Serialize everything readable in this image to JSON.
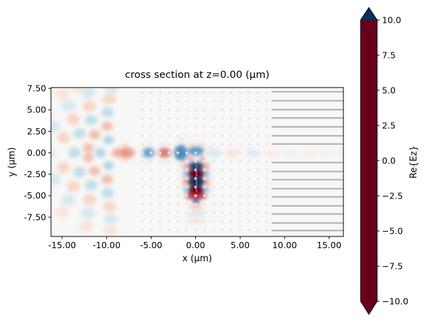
{
  "figure": {
    "title": "cross section at z=0.00 (μm)"
  },
  "chart_data": {
    "type": "heatmap",
    "title": "cross section at z=0.00 (μm)",
    "xlabel": "x (μm)",
    "ylabel": "y (μm)",
    "xlim": [
      -16.25,
      16.6
    ],
    "ylim": [
      -9.75,
      7.6
    ],
    "background": "#f7f7f6",
    "grid": false,
    "x_ticks": [
      {
        "v": -15,
        "label": "-15.00"
      },
      {
        "v": -10,
        "label": "-10.00"
      },
      {
        "v": -5,
        "label": "-5.00"
      },
      {
        "v": 0,
        "label": "0.00"
      },
      {
        "v": 5,
        "label": "5.00"
      },
      {
        "v": 10,
        "label": "10.00"
      },
      {
        "v": 15,
        "label": "15.00"
      }
    ],
    "y_ticks": [
      {
        "v": 7.5,
        "label": "7.50"
      },
      {
        "v": 5.0,
        "label": "5.00"
      },
      {
        "v": 2.5,
        "label": "2.50"
      },
      {
        "v": 0.0,
        "label": "0.00"
      },
      {
        "v": -2.5,
        "label": "-2.50"
      },
      {
        "v": -5.0,
        "label": "-5.00"
      },
      {
        "v": -7.5,
        "label": "-7.50"
      }
    ],
    "colormap_name": "RdBu",
    "colormap_stops": [
      [
        0.0,
        "#67001f"
      ],
      [
        0.1,
        "#b2182b"
      ],
      [
        0.2,
        "#d6604d"
      ],
      [
        0.3,
        "#f4a582"
      ],
      [
        0.4,
        "#fddbc7"
      ],
      [
        0.5,
        "#f7f7f7"
      ],
      [
        0.6,
        "#d1e5f0"
      ],
      [
        0.7,
        "#92c5de"
      ],
      [
        0.8,
        "#4393c3"
      ],
      [
        0.9,
        "#2166ac"
      ],
      [
        1.0,
        "#053061"
      ]
    ],
    "colorbar": {
      "label": "Re{Ez}",
      "vmin": -10,
      "vmax": 10,
      "extend": "both",
      "ticks": [
        {
          "v": 10.0,
          "label": "10.0"
        },
        {
          "v": 7.5,
          "label": "7.5"
        },
        {
          "v": 5.0,
          "label": "5.0"
        },
        {
          "v": 2.5,
          "label": "2.5"
        },
        {
          "v": 0.0,
          "label": "0.0"
        },
        {
          "v": -2.5,
          "label": "−2.5"
        },
        {
          "v": -5.0,
          "label": "−5.0"
        },
        {
          "v": -7.5,
          "label": "−7.5"
        },
        {
          "v": -10.0,
          "label": "−10.0"
        }
      ]
    },
    "field_blobs": [
      [
        -9.8,
        1.5,
        0.6,
        0.5,
        4.5
      ],
      [
        -10.7,
        0,
        0.6,
        0.55,
        4.5
      ],
      [
        -9.8,
        -1.5,
        0.6,
        0.5,
        4.5
      ],
      [
        -9.95,
        3.1,
        0.65,
        0.55,
        -4.5
      ],
      [
        -11.35,
        2.1,
        0.65,
        0.55,
        -4.5
      ],
      [
        -12.05,
        0.57,
        0.6,
        0.55,
        -4.5
      ],
      [
        -12.05,
        -0.57,
        0.6,
        0.55,
        -4.5
      ],
      [
        -11.35,
        -2.1,
        0.65,
        0.55,
        -4.5
      ],
      [
        -9.95,
        -3.1,
        0.65,
        0.55,
        -4.5
      ],
      [
        -9.9,
        4.7,
        0.7,
        0.6,
        4
      ],
      [
        -11.75,
        3.8,
        0.7,
        0.6,
        4
      ],
      [
        -13.05,
        2.25,
        0.7,
        0.6,
        4
      ],
      [
        -13.6,
        0,
        0.7,
        0.6,
        4
      ],
      [
        -13.05,
        -2.25,
        0.7,
        0.6,
        4
      ],
      [
        -11.75,
        -3.8,
        0.7,
        0.6,
        4
      ],
      [
        -9.9,
        -4.7,
        0.7,
        0.6,
        4
      ],
      [
        -9.7,
        6.25,
        0.75,
        0.6,
        -3.5
      ],
      [
        -11.95,
        5.45,
        0.75,
        0.65,
        -3.5
      ],
      [
        -13.75,
        3.9,
        0.75,
        0.65,
        -3.5
      ],
      [
        -14.85,
        1.75,
        0.7,
        0.65,
        -3.5
      ],
      [
        -14.85,
        -1.75,
        0.7,
        0.65,
        -3.5
      ],
      [
        -13.75,
        -3.9,
        0.75,
        0.65,
        -3.5
      ],
      [
        -11.95,
        -5.45,
        0.75,
        0.65,
        -3.5
      ],
      [
        -9.7,
        -6.25,
        0.75,
        0.6,
        -3.5
      ],
      [
        -9.5,
        7.5,
        0.8,
        0.6,
        3
      ],
      [
        -12.1,
        7.05,
        0.8,
        0.7,
        3
      ],
      [
        -14.3,
        5.5,
        0.8,
        0.7,
        3
      ],
      [
        -16.0,
        3.05,
        0.8,
        0.7,
        3
      ],
      [
        -16.55,
        0,
        0.8,
        0.7,
        3
      ],
      [
        -16.0,
        -3.05,
        0.8,
        0.7,
        3
      ],
      [
        -14.3,
        -5.5,
        0.8,
        0.7,
        3
      ],
      [
        -12.1,
        -7.05,
        0.8,
        0.7,
        3
      ],
      [
        -9.5,
        -7.75,
        0.8,
        0.6,
        3
      ],
      [
        -15.0,
        6.9,
        0.8,
        0.7,
        -2.5
      ],
      [
        -16.9,
        3.9,
        0.8,
        0.7,
        -2.5
      ],
      [
        -16.9,
        -3.9,
        0.8,
        0.7,
        -2.5
      ],
      [
        -15.0,
        -6.9,
        0.8,
        0.7,
        -2.5
      ],
      [
        -12.3,
        -8.6,
        0.8,
        0.7,
        -2.5
      ],
      [
        -9.6,
        -9.1,
        0.8,
        0.6,
        -2.5
      ],
      [
        -13.3,
        7.5,
        0.8,
        0.6,
        -2.5
      ],
      [
        -8.55,
        0,
        0.9,
        0.55,
        -5
      ],
      [
        -7.6,
        0,
        0.75,
        0.6,
        -5.5
      ],
      [
        -7.95,
        0.8,
        0.45,
        0.3,
        -3.5
      ],
      [
        -7.95,
        -0.8,
        0.45,
        0.3,
        -3.5
      ],
      [
        -5.3,
        0,
        0.7,
        0.6,
        6.5
      ],
      [
        -5.3,
        1.15,
        0.35,
        0.25,
        -2.5
      ],
      [
        -5.3,
        -1.15,
        0.35,
        0.25,
        -2.5
      ],
      [
        -3.5,
        0,
        0.7,
        0.6,
        -6.5
      ],
      [
        -3.5,
        1.15,
        0.35,
        0.25,
        2.5
      ],
      [
        -3.5,
        -1.15,
        0.35,
        0.25,
        2.5
      ],
      [
        -1.65,
        0,
        0.75,
        0.95,
        7.5
      ],
      [
        -1.65,
        1.5,
        0.3,
        0.25,
        -3
      ],
      [
        -1.65,
        -1.5,
        0.3,
        0.25,
        -3
      ],
      [
        0.05,
        0.2,
        0.9,
        0.55,
        7
      ],
      [
        -0.6,
        -0.7,
        0.3,
        0.25,
        -6
      ],
      [
        0.75,
        -0.7,
        0.3,
        0.25,
        -6
      ],
      [
        0.05,
        -1.55,
        0.9,
        0.5,
        9.5
      ],
      [
        0.05,
        -2.45,
        1.0,
        0.55,
        -10
      ],
      [
        0.05,
        -3.4,
        1.0,
        0.55,
        10
      ],
      [
        0.05,
        -4.35,
        0.95,
        0.5,
        -10
      ],
      [
        0.05,
        -5.05,
        1.2,
        0.4,
        -8
      ],
      [
        0.05,
        -5.65,
        0.4,
        0.3,
        8.5
      ],
      [
        0.05,
        -6.35,
        0.8,
        0.3,
        -4
      ],
      [
        0.05,
        -7.15,
        1.0,
        0.35,
        3
      ],
      [
        0.05,
        -7.95,
        1.1,
        0.35,
        -2.5
      ],
      [
        -1.15,
        -1.55,
        0.3,
        0.45,
        -5
      ],
      [
        1.25,
        -1.55,
        0.3,
        0.45,
        -5
      ],
      [
        -1.2,
        -2.45,
        0.3,
        0.45,
        5
      ],
      [
        1.3,
        -2.45,
        0.3,
        0.45,
        5
      ],
      [
        -1.2,
        -3.4,
        0.3,
        0.45,
        -5
      ],
      [
        1.3,
        -3.4,
        0.3,
        0.45,
        -5
      ],
      [
        -1.15,
        -4.3,
        0.3,
        0.4,
        5
      ],
      [
        1.25,
        -4.3,
        0.3,
        0.4,
        5
      ],
      [
        -0.45,
        0.95,
        0.28,
        0.22,
        -4
      ],
      [
        0.6,
        0.95,
        0.28,
        0.22,
        -4
      ],
      [
        1.6,
        0.55,
        0.3,
        0.25,
        -2.5
      ],
      [
        2.0,
        -0.05,
        0.85,
        0.5,
        3
      ],
      [
        4.2,
        -0.05,
        0.85,
        0.5,
        -2.5
      ],
      [
        6.4,
        -0.05,
        0.85,
        0.5,
        2.5
      ],
      [
        8.6,
        -0.05,
        0.85,
        0.5,
        -2
      ],
      [
        10.7,
        -0.05,
        0.85,
        0.5,
        2
      ],
      [
        12.8,
        -0.05,
        0.85,
        0.5,
        -1.8
      ],
      [
        14.8,
        -0.05,
        0.85,
        0.5,
        1.8
      ],
      [
        16.4,
        -0.05,
        0.7,
        0.5,
        -1.5
      ]
    ],
    "structure_overlay": {
      "slab_lines": {
        "color": "#b4b4b4",
        "x_start": 8.55,
        "x_end": 16.6,
        "y_values": [
          7.1,
          6.06,
          5.02,
          4.06,
          3.02,
          1.98,
          1.02,
          -1.14,
          -2.18,
          -3.14,
          -4.18,
          -5.14,
          -6.18,
          -7.14,
          -8.18,
          -9.06
        ]
      },
      "dot_grid": {
        "color": "#e6e6e6",
        "x_min": -6,
        "x_max": 8,
        "y_min": -9,
        "y_max": 7,
        "step": 1
      },
      "vertical_line": {
        "color": "#8f8f8f",
        "x": 0.1,
        "y_from": -4.6,
        "y_to": -1.3
      }
    }
  }
}
